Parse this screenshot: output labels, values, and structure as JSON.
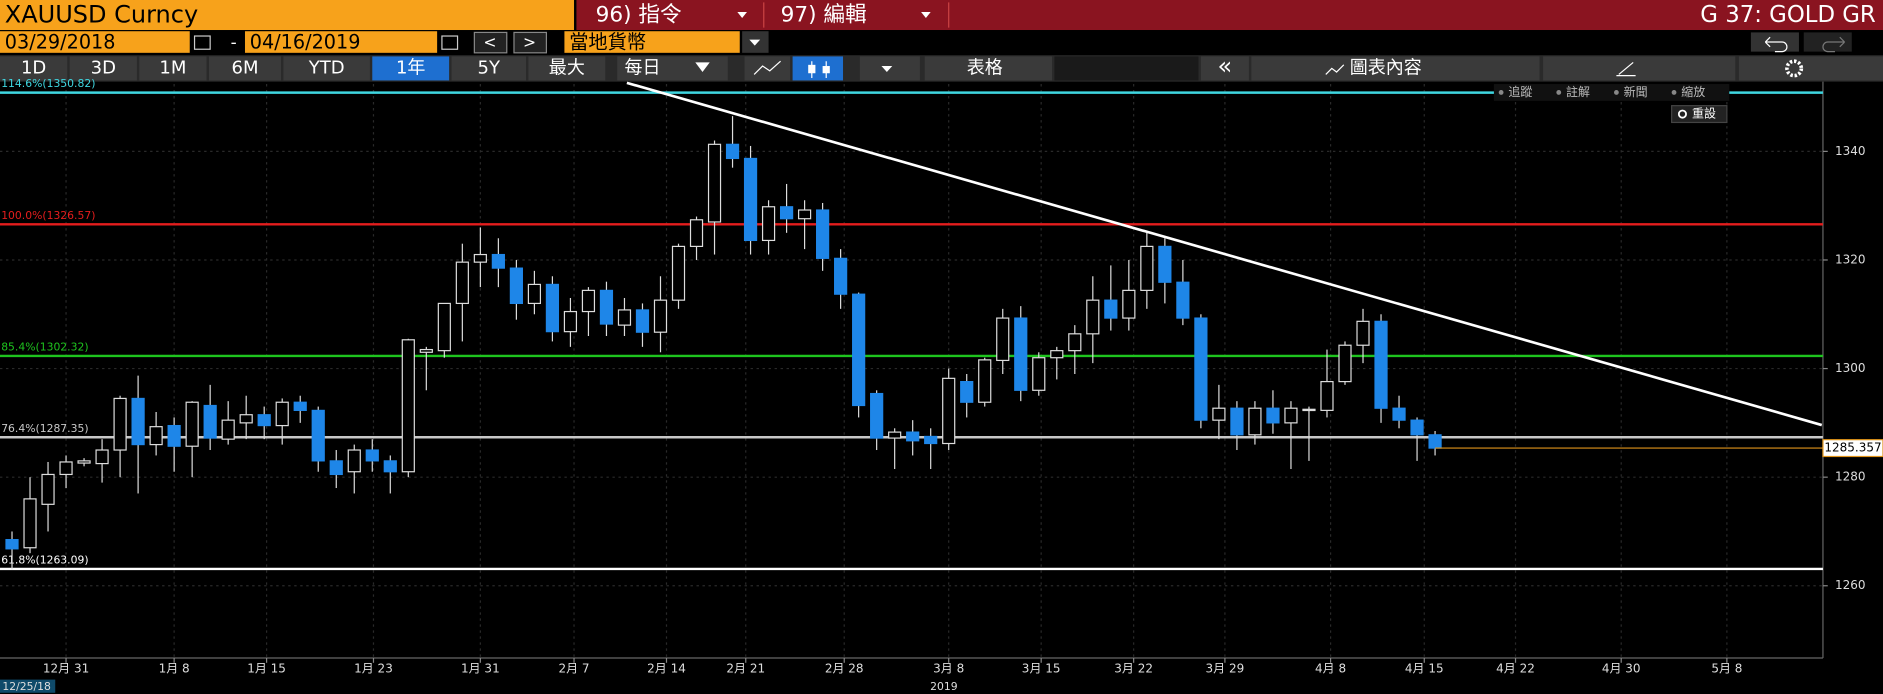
{
  "header": {
    "ticker": "XAUUSD Curncy",
    "menu1": "96) 指令",
    "menu2": "97) 編輯",
    "page": "G 37: GOLD GR"
  },
  "toolbar": {
    "start_date": "03/29/2018",
    "separator": "-",
    "end_date": "04/16/2019",
    "prev": "<",
    "next": ">",
    "currency": "當地貨幣",
    "periods": [
      "1D",
      "3D",
      "1M",
      "6M",
      "YTD",
      "1年",
      "5Y",
      "最大"
    ],
    "selected_period": "1年",
    "frequency": "每日",
    "table": "表格",
    "collapse": "«",
    "chart_content": "圖表內容"
  },
  "overlay": {
    "tools": [
      "追蹤",
      "註解",
      "新聞",
      "縮放"
    ],
    "reset": "重設"
  },
  "chart_data": {
    "type": "candlestick",
    "open": [
      1268.5,
      1267,
      1275,
      1280.5,
      1282.6,
      1282.5,
      1285,
      1294.5,
      1286,
      1289.5,
      1285.7,
      1293.2,
      1287,
      1290,
      1291.5,
      1289.5,
      1293.8,
      1292.3,
      1283,
      1281,
      1285,
      1283,
      1281,
      1303,
      1303.3,
      1312,
      1319.6,
      1321,
      1318.5,
      1312,
      1315.5,
      1306.8,
      1310.5,
      1314.4,
      1308,
      1310.8,
      1306.7,
      1312.6,
      1322.5,
      1327,
      1341.3,
      1338.7,
      1323.6,
      1329.8,
      1327.6,
      1329.2,
      1320.3,
      1313.7,
      1295.4,
      1287.2,
      1288.3,
      1287.5,
      1286.2,
      1297.6,
      1293.8,
      1301.5,
      1309.3,
      1296,
      1302,
      1303.3,
      1306.4,
      1312.6,
      1309.3,
      1314.4,
      1322.5,
      1315.9,
      1309.3,
      1290.5,
      1292.7,
      1287.8,
      1292.7,
      1290,
      1292.3,
      1292.3,
      1297.6,
      1304.3,
      1308.7,
      1292.7,
      1290.5,
      1287.8
    ],
    "high": [
      1270,
      1280,
      1282.8,
      1284,
      1283.5,
      1287,
      1295,
      1298.7,
      1292,
      1291,
      1294,
      1297,
      1294,
      1295,
      1293,
      1294.5,
      1295,
      1293,
      1285,
      1286,
      1287,
      1284,
      1305.5,
      1304,
      1312,
      1323,
      1326,
      1324,
      1320,
      1318,
      1317,
      1313,
      1315,
      1316,
      1313,
      1312,
      1317,
      1323,
      1328,
      1342,
      1346.5,
      1341,
      1331,
      1334,
      1331,
      1330.5,
      1322,
      1314,
      1296,
      1289,
      1290.5,
      1289,
      1300,
      1299,
      1302,
      1311,
      1311.5,
      1303,
      1304,
      1308,
      1317,
      1319,
      1320,
      1325,
      1324,
      1320,
      1310,
      1297,
      1294,
      1294,
      1296,
      1294,
      1293,
      1303.5,
      1305,
      1311,
      1310,
      1295,
      1291,
      1288.5
    ],
    "low": [
      1263,
      1266,
      1270,
      1278,
      1282,
      1279,
      1280,
      1277,
      1284,
      1281,
      1280,
      1285,
      1286,
      1287,
      1287,
      1286,
      1290,
      1281,
      1278,
      1277,
      1281,
      1277,
      1280,
      1296,
      1302,
      1305,
      1315,
      1315,
      1309,
      1310,
      1305,
      1304,
      1306,
      1306,
      1306,
      1304,
      1303,
      1311,
      1320,
      1321,
      1337,
      1321,
      1321,
      1325,
      1322,
      1318,
      1311,
      1291,
      1285,
      1281.5,
      1284,
      1281.5,
      1285,
      1291,
      1293,
      1299,
      1294,
      1295,
      1298,
      1299,
      1301,
      1307,
      1307,
      1311,
      1312,
      1308,
      1289,
      1287,
      1285,
      1286,
      1288,
      1281.5,
      1283,
      1291,
      1297,
      1301,
      1290,
      1289,
      1283,
      1284
    ],
    "close": [
      1266.8,
      1276,
      1280.5,
      1282.8,
      1283,
      1285,
      1294.5,
      1286,
      1289.3,
      1285.7,
      1293.8,
      1287.2,
      1290.5,
      1291.5,
      1289.5,
      1293.8,
      1292.3,
      1283,
      1280.5,
      1285,
      1283,
      1281,
      1305.3,
      1303.5,
      1312,
      1319.6,
      1321,
      1318.5,
      1312,
      1315.5,
      1306.8,
      1310.5,
      1314.4,
      1308.2,
      1310.8,
      1306.7,
      1312.6,
      1322.5,
      1327.4,
      1341.3,
      1338.7,
      1323.6,
      1329.8,
      1327.6,
      1329.2,
      1320.3,
      1313.7,
      1293.2,
      1287.2,
      1288.3,
      1286.7,
      1286.2,
      1298.2,
      1293.8,
      1301.6,
      1309.3,
      1296,
      1302,
      1303.3,
      1306.4,
      1312.6,
      1309.3,
      1314.4,
      1322.5,
      1315.9,
      1309.3,
      1290.5,
      1292.7,
      1287.8,
      1292.7,
      1290,
      1292.7,
      1292.5,
      1297.6,
      1304.3,
      1308.7,
      1292.7,
      1290.5,
      1287.8,
      1285.357
    ],
    "up_color": "#000000",
    "down_color": "#1e86e8",
    "x_labels": [
      "12月 31",
      "1月 8",
      "1月 15",
      "1月 23",
      "1月 31",
      "2月 7",
      "2月 14",
      "2月 21",
      "2月 28",
      "3月 8",
      "3月 15",
      "3月 22",
      "3月 29",
      "4月 8",
      "4月 15",
      "4月 22",
      "4月 30",
      "5月 8"
    ],
    "x_start_label": "12/25/18",
    "year_label": "2019",
    "ylim": [
      1246.7,
      1352.4
    ],
    "yticks": [
      1260,
      1280,
      1300,
      1320,
      1340
    ],
    "levels": [
      {
        "label": "114.6%(1350.82)",
        "value": 1350.82,
        "color": "#3fd6e0"
      },
      {
        "label": "100.0%(1326.57)",
        "value": 1326.57,
        "color": "#e41d1d"
      },
      {
        "label": "85.4%(1302.32)",
        "value": 1302.32,
        "color": "#1ec41e"
      },
      {
        "label": "76.4%(1287.35)",
        "value": 1287.35,
        "color": "#c8c8c8"
      },
      {
        "label": "61.8%(1263.09)",
        "value": 1263.09,
        "color": "#ffffff"
      }
    ],
    "last_price": 1285.357,
    "last_color": "#e0941a"
  }
}
